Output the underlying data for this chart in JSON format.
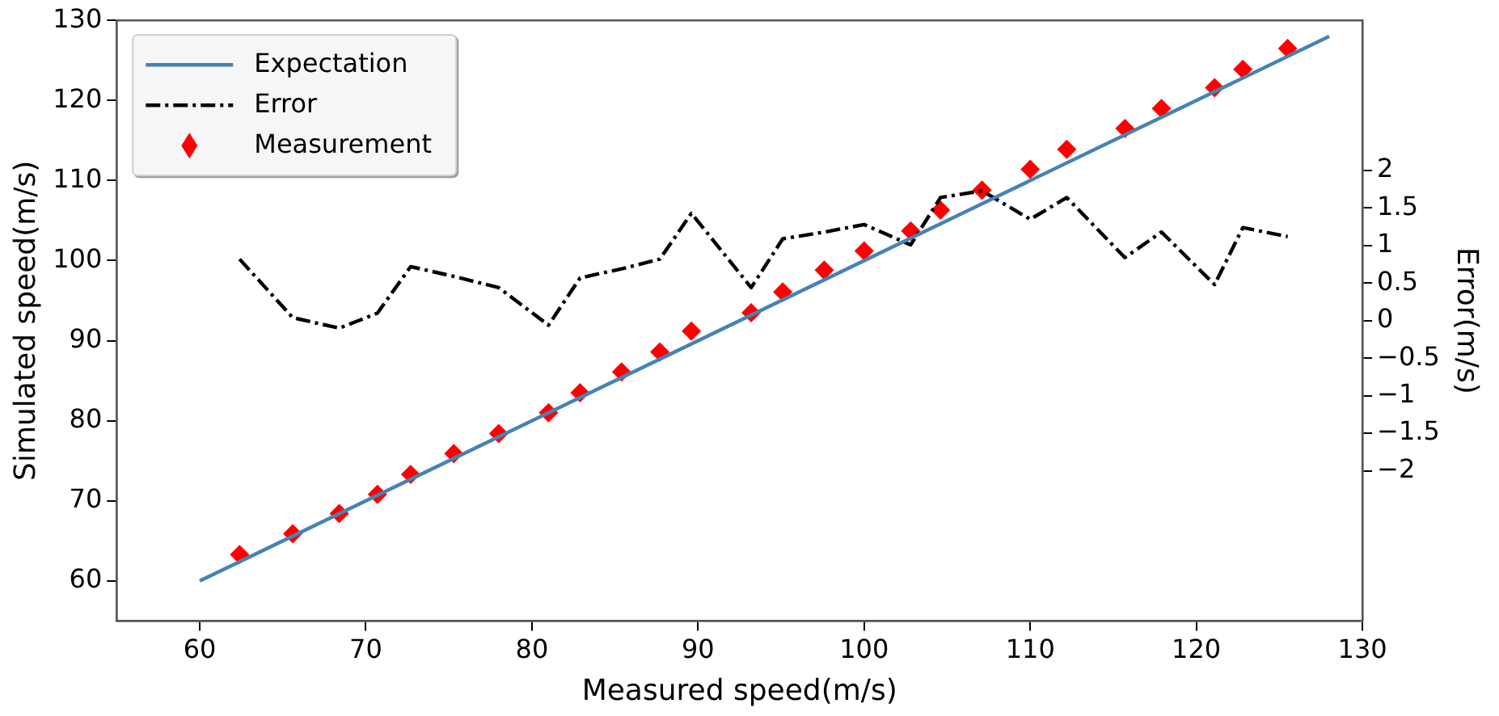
{
  "chart_data": {
    "type": "line",
    "xlabel": "Measured speed(m/s)",
    "ylabel": "Simulated speed(m/s)",
    "y2label": "Error(m/s)",
    "xlim": [
      55,
      130
    ],
    "xticks": [
      60,
      70,
      80,
      90,
      100,
      110,
      120,
      130
    ],
    "ylim": [
      55,
      130
    ],
    "yticks": [
      60,
      70,
      80,
      90,
      100,
      110,
      120,
      130
    ],
    "y2lim": [
      -4,
      4
    ],
    "y2ticks": [
      {
        "value": -2,
        "label": "−2"
      },
      {
        "value": -1.5,
        "label": "−1.5"
      },
      {
        "value": -1,
        "label": "−1"
      },
      {
        "value": -0.5,
        "label": "−0.5"
      },
      0,
      0.5,
      1,
      1.5,
      2
    ],
    "grid": false,
    "legend": "top left",
    "series": [
      {
        "name": "Expectation",
        "type": "line",
        "color": "#4682b4",
        "marker": "none",
        "line_style": "solid",
        "x": [
          60,
          128
        ],
        "values": [
          60,
          128
        ]
      },
      {
        "name": "Error",
        "type": "line",
        "axis": "y2",
        "color": "#000000",
        "marker": "none",
        "line_style": "dashdot",
        "x": [
          62.4,
          65.6,
          68.4,
          70.7,
          72.7,
          75.3,
          78.0,
          81.0,
          82.9,
          85.4,
          87.7,
          89.6,
          93.2,
          95.1,
          97.6,
          100.0,
          102.8,
          104.6,
          107.1,
          110.0,
          112.2,
          115.7,
          117.9,
          121.1,
          122.8,
          125.5
        ],
        "values": [
          0.82,
          0.04,
          -0.1,
          0.1,
          0.72,
          0.59,
          0.44,
          -0.06,
          0.57,
          0.69,
          0.82,
          1.43,
          0.44,
          1.09,
          1.18,
          1.28,
          1.01,
          1.64,
          1.73,
          1.35,
          1.64,
          0.84,
          1.18,
          0.48,
          1.24,
          1.12
        ]
      },
      {
        "name": "Measurement",
        "type": "scatter",
        "color": "#ff0000",
        "marker": "diamond",
        "x": [
          62.4,
          65.6,
          68.4,
          70.7,
          72.7,
          75.3,
          78.0,
          81.0,
          82.9,
          85.4,
          87.7,
          89.6,
          93.2,
          95.1,
          97.6,
          100.0,
          102.8,
          104.6,
          107.1,
          110.0,
          112.2,
          115.7,
          117.9,
          121.1,
          122.8,
          125.5
        ],
        "values": [
          63.3,
          65.9,
          68.4,
          70.8,
          73.3,
          75.9,
          78.4,
          81.0,
          83.5,
          86.1,
          88.6,
          91.2,
          93.5,
          96.1,
          98.8,
          101.2,
          103.7,
          106.3,
          108.8,
          111.4,
          113.9,
          116.5,
          119.0,
          121.6,
          123.9,
          126.5
        ]
      }
    ]
  }
}
